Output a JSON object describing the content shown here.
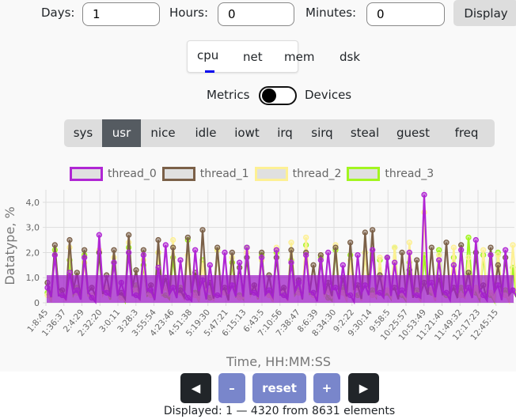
{
  "range": {
    "days_label": "Days:",
    "days_value": "1",
    "hours_label": "Hours:",
    "hours_value": "0",
    "minutes_label": "Minutes:",
    "minutes_value": "0",
    "display_label": "Display"
  },
  "tabs": [
    {
      "label": "cpu",
      "active": true
    },
    {
      "label": "net"
    },
    {
      "label": "mem"
    },
    {
      "label": "dsk"
    }
  ],
  "toggle": {
    "left": "Metrics",
    "right": "Devices",
    "state": "off"
  },
  "metrics": [
    {
      "label": "sys"
    },
    {
      "label": "usr",
      "active": true
    },
    {
      "label": "nice"
    },
    {
      "label": "idle"
    },
    {
      "label": "iowt"
    },
    {
      "label": "irq"
    },
    {
      "label": "sirq"
    },
    {
      "label": "steal"
    },
    {
      "label": "guest"
    },
    {
      "label": "freq"
    }
  ],
  "nav": {
    "prev_icon": "triangle-left-icon",
    "zoom_out": "–",
    "reset": "reset",
    "zoom_in": "+",
    "next_icon": "triangle-right-icon",
    "status": "Displayed: 1 — 4320 from 8631 elements"
  },
  "colors": {
    "accent": "#7986cb",
    "dark": "#212529",
    "active_metric": "#555b61",
    "tab_indicator": "#0000ee"
  },
  "chart_data": {
    "type": "line",
    "xlabel": "Time, HH:MM:SS",
    "ylabel": "Datatype, %",
    "ylim": [
      0,
      4.5
    ],
    "grid": true,
    "legend_placement": "top",
    "yticks": [
      "0",
      "1,0",
      "2,0",
      "3,0",
      "4,0"
    ],
    "xticks": [
      "1:8:45",
      "1:36:37",
      "2:4:29",
      "2:32:20",
      "3:0:11",
      "3:28:3",
      "3:55:54",
      "4:23:46",
      "4:51:38",
      "5:19:30",
      "5:47:21",
      "6:15:13",
      "6:43:5",
      "7:10:56",
      "7:38:47",
      "8:6:39",
      "8:34:30",
      "9:2:22",
      "9:30:14",
      "9:58:5",
      "10:25:57",
      "10:53:49",
      "11:21:40",
      "11:49:32",
      "12:17:23",
      "12:45:15"
    ],
    "series": [
      {
        "name": "thread_3",
        "color": "#a2f51f",
        "values": [
          0.4,
          2.1,
          0.3,
          1.7,
          0.6,
          1.9,
          0.2,
          2.0,
          0.5,
          1.6,
          0.3,
          2.2,
          0.7,
          1.5,
          0.4,
          2.0,
          0.3,
          1.8,
          0.6,
          2.5,
          0.4,
          1.7,
          0.2,
          2.1,
          0.5,
          1.6,
          0.3,
          2.2,
          0.6,
          1.9,
          0.4,
          2.0,
          0.3,
          1.7,
          0.5,
          2.3,
          0.4,
          1.8,
          0.2,
          2.1,
          0.6,
          1.9,
          0.3,
          2.0,
          0.5,
          1.7,
          0.4,
          2.2,
          0.3,
          1.6,
          0.5,
          1.9,
          0.4,
          2.1,
          0.3,
          1.8,
          0.6,
          2.6,
          0.4,
          1.9,
          0.3,
          2.0,
          0.5,
          1.4
        ]
      },
      {
        "name": "thread_2",
        "color": "#fdf094",
        "values": [
          0.3,
          1.9,
          0.5,
          2.2,
          0.4,
          1.6,
          0.3,
          2.1,
          0.6,
          1.8,
          0.2,
          2.4,
          0.5,
          1.7,
          0.3,
          2.0,
          0.6,
          2.5,
          0.4,
          1.9,
          0.3,
          1.6,
          0.5,
          2.1,
          0.4,
          1.8,
          0.2,
          2.0,
          0.6,
          1.7,
          0.3,
          2.2,
          0.5,
          2.4,
          0.4,
          2.6,
          0.3,
          1.9,
          0.5,
          2.3,
          0.4,
          1.7,
          0.6,
          2.0,
          0.3,
          1.8,
          0.5,
          2.2,
          0.4,
          2.4,
          0.3,
          3.6,
          0.5,
          1.9,
          0.4,
          2.2,
          0.3,
          1.8,
          0.6,
          2.1,
          0.4,
          1.9,
          0.3,
          2.3
        ]
      },
      {
        "name": "thread_1",
        "color": "#7b6048",
        "values": [
          0.8,
          2.3,
          0.5,
          2.5,
          1.2,
          2.1,
          0.6,
          2.0,
          1.1,
          2.1,
          0.4,
          2.7,
          1.3,
          2.1,
          0.7,
          2.5,
          1.0,
          2.2,
          0.5,
          2.6,
          1.2,
          2.9,
          0.8,
          2.2,
          0.6,
          2.0,
          1.4,
          1.8,
          0.7,
          2.0,
          1.1,
          1.8,
          0.6,
          2.1,
          0.9,
          2.0,
          1.5,
          1.9,
          0.8,
          2.2,
          1.0,
          2.4,
          0.7,
          2.8,
          2.9,
          1.1,
          1.8,
          0.6,
          2.0,
          1.3,
          1.7,
          0.8,
          2.2,
          1.0,
          2.4,
          0.6,
          2.3,
          1.2,
          2.0,
          0.7,
          2.2,
          1.5,
          1.8,
          0.5
        ]
      },
      {
        "name": "thread_0",
        "color": "#b026d4",
        "values": [
          0.6,
          1.9,
          0.3,
          1.2,
          0.5,
          1.8,
          0.2,
          2.7,
          0.4,
          1.6,
          0.8,
          2.0,
          0.3,
          1.9,
          0.5,
          1.4,
          2.3,
          0.6,
          1.7,
          0.2,
          2.1,
          0.9,
          1.5,
          0.3,
          2.0,
          0.7,
          1.6,
          2.2,
          0.4,
          1.8,
          0.5,
          2.1,
          0.3,
          1.6,
          0.8,
          1.9,
          0.4,
          1.7,
          2.0,
          0.6,
          1.5,
          0.3,
          1.9,
          0.7,
          2.1,
          0.4,
          1.8,
          1.6,
          0.5,
          2.0,
          0.3,
          4.3,
          0.8,
          1.7,
          0.4,
          1.5,
          2.1,
          0.6,
          2.5,
          0.3,
          1.9,
          0.7,
          2.1,
          0.5
        ]
      }
    ],
    "legend": [
      "thread_0",
      "thread_1",
      "thread_2",
      "thread_3"
    ]
  }
}
